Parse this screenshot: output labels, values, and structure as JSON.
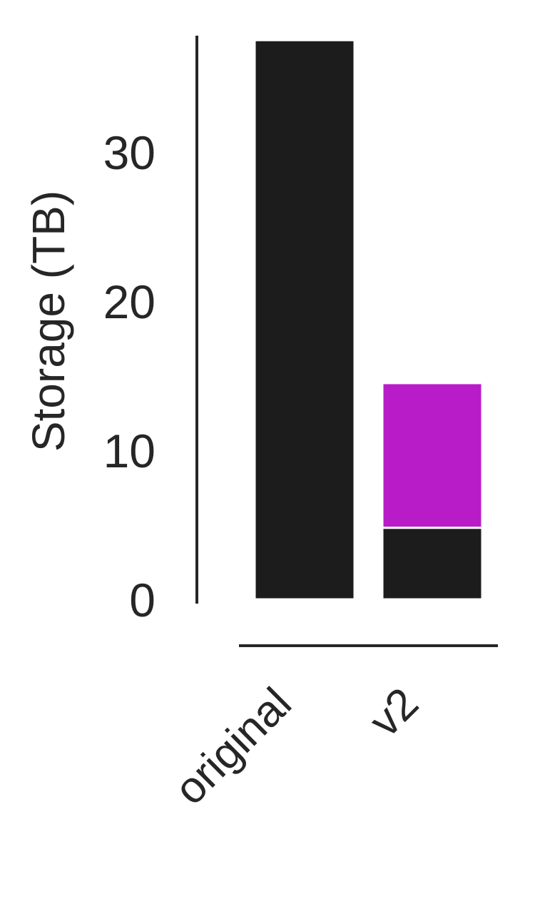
{
  "chart_data": {
    "type": "bar",
    "stacked": true,
    "title": "",
    "xlabel": "",
    "ylabel": "Storage (TB)",
    "ylim": [
      0,
      36
    ],
    "yticks": [
      0,
      10,
      20,
      30
    ],
    "categories": [
      "original",
      "v2"
    ],
    "series": [
      {
        "values": [
          37.5,
          4.8
        ],
        "color": "#1c1c1c"
      },
      {
        "values": [
          0,
          9.7
        ],
        "color": "#b81cc8"
      }
    ],
    "legend": "none",
    "grid": false,
    "x_tick_rotation": -45
  }
}
